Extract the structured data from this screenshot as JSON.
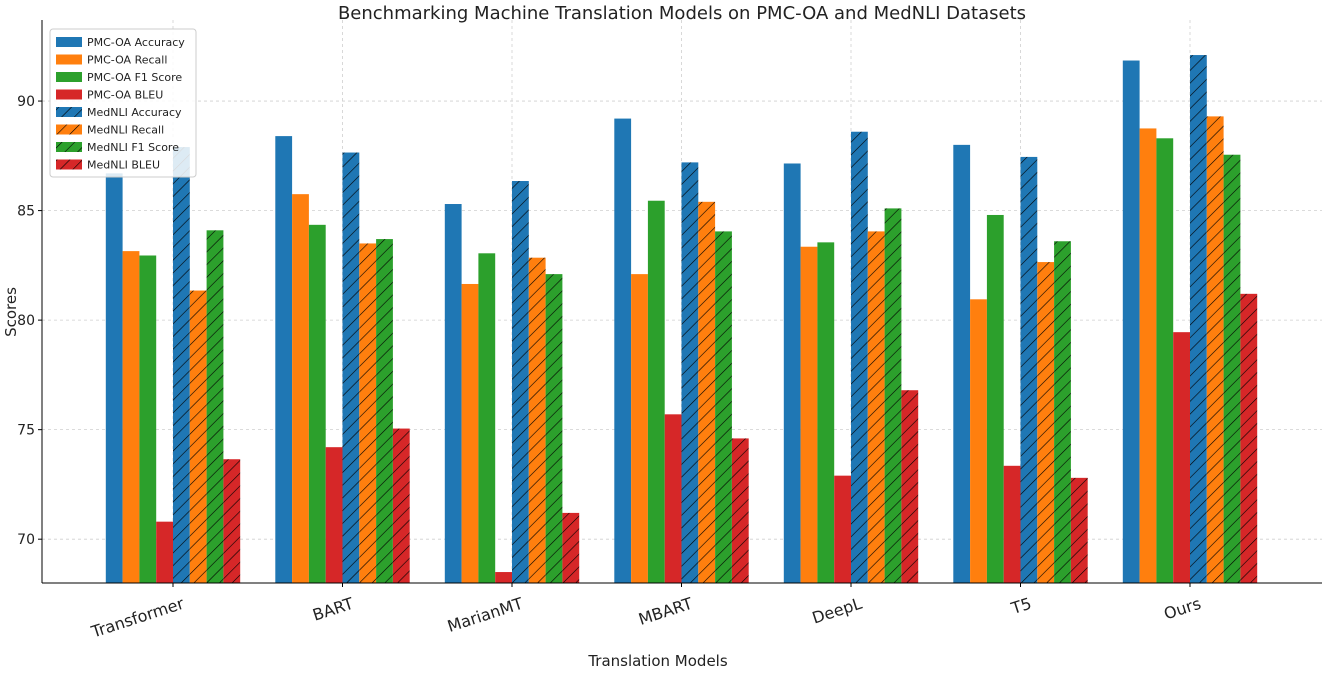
{
  "chart_data": {
    "type": "bar",
    "title": "Benchmarking Machine Translation Models on PMC-OA and MedNLI Datasets",
    "xlabel": "Translation Models",
    "ylabel": "Scores",
    "categories": [
      "Transformer",
      "BART",
      "MarianMT",
      "MBART",
      "DeepL",
      "T5",
      "Ours"
    ],
    "ylim": [
      68,
      93.7
    ],
    "yticks": [
      70,
      75,
      80,
      85,
      90
    ],
    "grid": true,
    "legend_position": "top-left",
    "series": [
      {
        "name": "PMC-OA Accuracy",
        "color": "#1f77b4",
        "hatched": false,
        "values": [
          86.7,
          88.4,
          85.3,
          89.2,
          87.15,
          88.0,
          91.85
        ]
      },
      {
        "name": "PMC-OA Recall",
        "color": "#ff7f0e",
        "hatched": false,
        "values": [
          83.15,
          85.75,
          81.65,
          82.1,
          83.35,
          80.95,
          88.75
        ]
      },
      {
        "name": "PMC-OA F1 Score",
        "color": "#2ca02c",
        "hatched": false,
        "values": [
          82.95,
          84.35,
          83.05,
          85.45,
          83.55,
          84.8,
          88.3
        ]
      },
      {
        "name": "PMC-OA BLEU",
        "color": "#d62728",
        "hatched": false,
        "values": [
          70.8,
          74.2,
          68.5,
          75.7,
          72.9,
          73.35,
          79.45
        ]
      },
      {
        "name": "MedNLI Accuracy",
        "color": "#1f77b4",
        "hatched": true,
        "values": [
          87.9,
          87.65,
          86.35,
          87.2,
          88.6,
          87.45,
          92.1
        ]
      },
      {
        "name": "MedNLI Recall",
        "color": "#ff7f0e",
        "hatched": true,
        "values": [
          81.35,
          83.5,
          82.85,
          85.4,
          84.05,
          82.65,
          89.3
        ]
      },
      {
        "name": "MedNLI F1 Score",
        "color": "#2ca02c",
        "hatched": true,
        "values": [
          84.1,
          83.7,
          82.1,
          84.05,
          85.1,
          83.6,
          87.55
        ]
      },
      {
        "name": "MedNLI BLEU",
        "color": "#d62728",
        "hatched": true,
        "values": [
          73.65,
          75.05,
          71.2,
          74.6,
          76.8,
          72.8,
          81.2
        ]
      }
    ]
  }
}
